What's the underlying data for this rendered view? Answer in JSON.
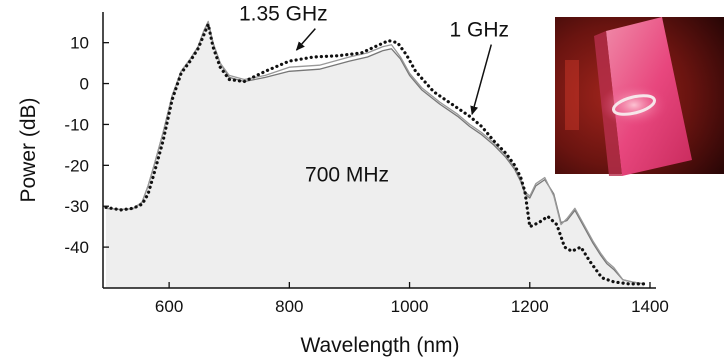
{
  "chart_data": {
    "type": "area",
    "xlabel": "Wavelength (nm)",
    "ylabel": "Power (dB)",
    "xlim": [
      490,
      1410
    ],
    "ylim": [
      -50,
      17.5
    ],
    "xticks": [
      600,
      800,
      1000,
      1200,
      1400
    ],
    "yticks": [
      10,
      0,
      -10,
      -20,
      -30,
      -40
    ],
    "grid": false,
    "annotations": [
      {
        "text": "1.35 GHz",
        "x": 790,
        "y": 15.4,
        "arrow_to": {
          "x": 812,
          "y": 8.2
        }
      },
      {
        "text": "1 GHz",
        "x": 1116,
        "y": 11.5,
        "arrow_to": {
          "x": 1104,
          "y": -7.5
        }
      },
      {
        "text": "700 MHz",
        "x": 896,
        "y": -24
      }
    ],
    "series": [
      {
        "style": "filled-area",
        "color": "#eeeeee",
        "x": [
          495,
          520,
          540,
          555,
          565,
          575,
          590,
          605,
          620,
          635,
          648,
          658,
          665,
          673,
          685,
          700,
          725,
          760,
          800,
          850,
          900,
          930,
          955,
          970,
          985,
          1000,
          1020,
          1050,
          1080,
          1100,
          1120,
          1140,
          1160,
          1175,
          1185,
          1192,
          1200,
          1210,
          1225,
          1240,
          1252,
          1262,
          1275,
          1290,
          1305,
          1318,
          1328,
          1340,
          1355,
          1370,
          1390
        ],
        "y": [
          -30.5,
          -30.8,
          -30.6,
          -29,
          -25,
          -20,
          -12,
          -3,
          3,
          6,
          9,
          13,
          15,
          10,
          5,
          1.5,
          0.5,
          1.5,
          3,
          3.5,
          5.5,
          6.5,
          8,
          8.5,
          6,
          2,
          -1.5,
          -5,
          -8,
          -10.5,
          -12.5,
          -15,
          -18,
          -21,
          -24,
          -27,
          -28,
          -25,
          -23.5,
          -27,
          -34,
          -33.5,
          -31,
          -35,
          -39,
          -42,
          -44,
          -45.5,
          -48,
          -48.5,
          -49
        ]
      },
      {
        "style": "solid-line",
        "color": "#777777",
        "x": [
          495,
          520,
          540,
          555,
          565,
          575,
          590,
          605,
          620,
          635,
          648,
          658,
          665,
          673,
          685,
          700,
          725,
          760,
          800,
          850,
          900,
          930,
          955,
          970,
          985,
          1000,
          1020,
          1050,
          1080,
          1100,
          1120,
          1140,
          1160,
          1175,
          1185,
          1192,
          1200,
          1210,
          1225,
          1240,
          1252,
          1262,
          1275,
          1290,
          1305,
          1318,
          1328,
          1340,
          1355,
          1370,
          1390
        ],
        "y": [
          -30.5,
          -30.8,
          -30.6,
          -29,
          -25,
          -20,
          -12,
          -3,
          3,
          6,
          9,
          13,
          15,
          10,
          5,
          1.5,
          0.5,
          1.5,
          3,
          3.5,
          5.5,
          6.5,
          8,
          8.5,
          6,
          2,
          -1.5,
          -5,
          -8,
          -10.5,
          -12.5,
          -15,
          -18,
          -21,
          -24,
          -27,
          -28,
          -25,
          -23.5,
          -27,
          -34,
          -33.5,
          -31,
          -35,
          -39,
          -42,
          -44,
          -45.5,
          -48,
          -48.5,
          -49
        ]
      },
      {
        "style": "solid-line",
        "color": "#999999",
        "x": [
          495,
          520,
          540,
          555,
          565,
          575,
          590,
          605,
          620,
          635,
          648,
          658,
          665,
          673,
          685,
          700,
          725,
          760,
          800,
          850,
          900,
          930,
          955,
          970,
          985,
          1000,
          1020,
          1050,
          1080,
          1100,
          1120,
          1140,
          1160,
          1175,
          1185,
          1192,
          1200,
          1210,
          1225,
          1240,
          1252,
          1262,
          1275,
          1290,
          1305,
          1318,
          1328,
          1340,
          1355,
          1370,
          1390
        ],
        "y": [
          -30.5,
          -30.8,
          -30.6,
          -29,
          -25,
          -20,
          -12,
          -3,
          3,
          6,
          9,
          13,
          15.2,
          10,
          5,
          2,
          1,
          2,
          4,
          4.5,
          6.5,
          7.5,
          9,
          9.5,
          6.5,
          2.5,
          -1,
          -4.5,
          -7.5,
          -10,
          -12,
          -14.5,
          -17.5,
          -20.5,
          -23.5,
          -26.5,
          -27.5,
          -24.5,
          -23,
          -27.5,
          -34.5,
          -33,
          -30.5,
          -34.5,
          -38.5,
          -41.5,
          -43.5,
          -45,
          -48,
          -48.5,
          -49
        ]
      },
      {
        "style": "dotted-line",
        "color": "#111111",
        "x": [
          495,
          520,
          540,
          555,
          565,
          575,
          590,
          605,
          620,
          635,
          648,
          658,
          665,
          673,
          685,
          700,
          725,
          760,
          800,
          840,
          880,
          920,
          950,
          965,
          980,
          995,
          1010,
          1040,
          1070,
          1100,
          1120,
          1140,
          1160,
          1175,
          1185,
          1192,
          1200,
          1215,
          1230,
          1245,
          1258,
          1270,
          1285,
          1300,
          1320,
          1340,
          1365,
          1390
        ],
        "y": [
          -30.3,
          -30.9,
          -30.5,
          -29.5,
          -27,
          -22,
          -14,
          -4,
          2.5,
          5.5,
          8.5,
          12,
          14.5,
          9,
          4,
          1,
          0.5,
          3,
          5.5,
          6.5,
          6.8,
          7.5,
          9.5,
          10.5,
          10,
          7,
          3,
          -2,
          -5,
          -8,
          -10.5,
          -14,
          -17,
          -20,
          -23,
          -26.5,
          -35,
          -34,
          -32.5,
          -34.5,
          -40,
          -41,
          -40,
          -43.5,
          -47.5,
          -48.5,
          -49,
          -49
        ]
      }
    ]
  },
  "inset": {
    "description_colors": {
      "background": "#6a1410",
      "sample": "#e8477e",
      "ring": "#f6e6ea"
    }
  }
}
